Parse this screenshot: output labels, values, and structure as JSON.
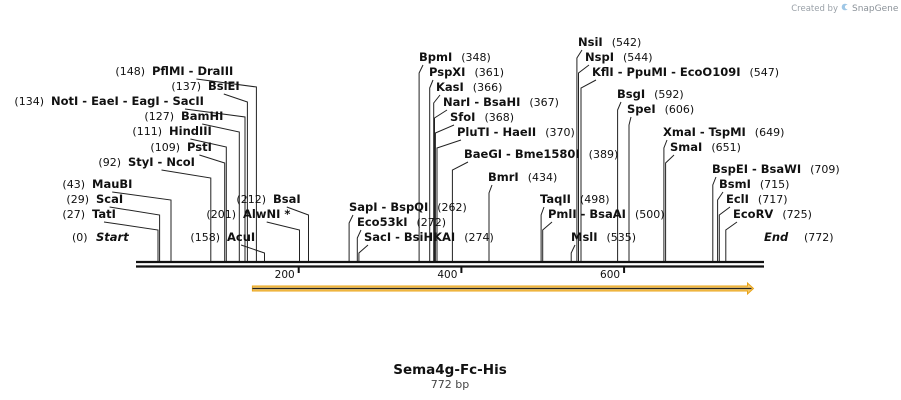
{
  "credit": {
    "prefix": "Created by",
    "brand": "SnapGene"
  },
  "construct": {
    "name": "Sema4g-Fc-His",
    "length_label": "772 bp"
  },
  "sequence": {
    "start_label": "Start",
    "start_pos": "(0)",
    "end_label": "End",
    "end_pos": "(772)",
    "length": 772
  },
  "ruler": {
    "ticks": [
      200,
      400,
      600
    ]
  },
  "feature": {
    "start": 148,
    "end": 764,
    "color": "#e8a317",
    "direction": "forward"
  },
  "sites": [
    {
      "id": "tati",
      "label": "TatI",
      "pos": "(27)",
      "loc": 27
    },
    {
      "id": "scai",
      "label": "ScaI",
      "pos": "(29)",
      "loc": 29
    },
    {
      "id": "maubi",
      "label": "MauBI",
      "pos": "(43)",
      "loc": 43
    },
    {
      "id": "styi-ncoi",
      "label": "StyI  -  NcoI",
      "pos": "(92)",
      "loc": 92
    },
    {
      "id": "psti",
      "label": "PstI",
      "pos": "(109)",
      "loc": 109
    },
    {
      "id": "hindiii",
      "label": "HindIII",
      "pos": "(111)",
      "loc": 111
    },
    {
      "id": "bamhi",
      "label": "BamHI",
      "pos": "(127)",
      "loc": 127
    },
    {
      "id": "noti",
      "label": "NotI  -  EaeI  -  EagI  -  SacII",
      "pos": "(134)",
      "loc": 134
    },
    {
      "id": "bsiei",
      "label": "BsiEI",
      "pos": "(137)",
      "loc": 137
    },
    {
      "id": "pflmi",
      "label": "PflMI  -  DraIII",
      "pos": "(148)",
      "loc": 148
    },
    {
      "id": "acui",
      "label": "AcuI",
      "pos": "(158)",
      "loc": 158
    },
    {
      "id": "alwni",
      "label": "AlwNI *",
      "pos": "(201)",
      "loc": 201
    },
    {
      "id": "bsai",
      "label": "BsaI",
      "pos": "(212)",
      "loc": 212
    },
    {
      "id": "sapi",
      "label": "SapI  -  BspQI",
      "pos": "(262)",
      "loc": 262
    },
    {
      "id": "eco53ki",
      "label": "Eco53kI",
      "pos": "(272)",
      "loc": 272
    },
    {
      "id": "saci",
      "label": "SacI  -  BsiHKAI",
      "pos": "(274)",
      "loc": 274
    },
    {
      "id": "bpmi",
      "label": "BpmI",
      "pos": "(348)",
      "loc": 348
    },
    {
      "id": "pspxi",
      "label": "PspXI",
      "pos": "(361)",
      "loc": 361
    },
    {
      "id": "kasi",
      "label": "KasI",
      "pos": "(366)",
      "loc": 366
    },
    {
      "id": "nari",
      "label": "NarI  -  BsaHI",
      "pos": "(367)",
      "loc": 367
    },
    {
      "id": "sfoi",
      "label": "SfoI",
      "pos": "(368)",
      "loc": 368
    },
    {
      "id": "pluti",
      "label": "PluTI  -  HaeII",
      "pos": "(370)",
      "loc": 370
    },
    {
      "id": "baegi",
      "label": "BaeGI  -  Bme1580I",
      "pos": "(389)",
      "loc": 389
    },
    {
      "id": "bmri",
      "label": "BmrI",
      "pos": "(434)",
      "loc": 434
    },
    {
      "id": "taqii",
      "label": "TaqII",
      "pos": "(498)",
      "loc": 498
    },
    {
      "id": "pmli",
      "label": "PmlI  -  BsaAI",
      "pos": "(500)",
      "loc": 500
    },
    {
      "id": "msli",
      "label": "MslI",
      "pos": "(535)",
      "loc": 535
    },
    {
      "id": "nsii",
      "label": "NsiI",
      "pos": "(542)",
      "loc": 542
    },
    {
      "id": "nspi",
      "label": "NspI",
      "pos": "(544)",
      "loc": 544
    },
    {
      "id": "kfli",
      "label": "KflI  -  PpuMI  -  EcoO109I",
      "pos": "(547)",
      "loc": 547
    },
    {
      "id": "bsgi",
      "label": "BsgI",
      "pos": "(592)",
      "loc": 592
    },
    {
      "id": "spei",
      "label": "SpeI",
      "pos": "(606)",
      "loc": 606
    },
    {
      "id": "xmai",
      "label": "XmaI  -  TspMI",
      "pos": "(649)",
      "loc": 649
    },
    {
      "id": "smai",
      "label": "SmaI",
      "pos": "(651)",
      "loc": 651
    },
    {
      "id": "bspei",
      "label": "BspEI  -  BsaWI",
      "pos": "(709)",
      "loc": 709
    },
    {
      "id": "bsmi",
      "label": "BsmI",
      "pos": "(715)",
      "loc": 715
    },
    {
      "id": "ecli",
      "label": "EclI",
      "pos": "(717)",
      "loc": 717
    },
    {
      "id": "ecorv",
      "label": "EcoRV",
      "pos": "(725)",
      "loc": 725
    }
  ]
}
